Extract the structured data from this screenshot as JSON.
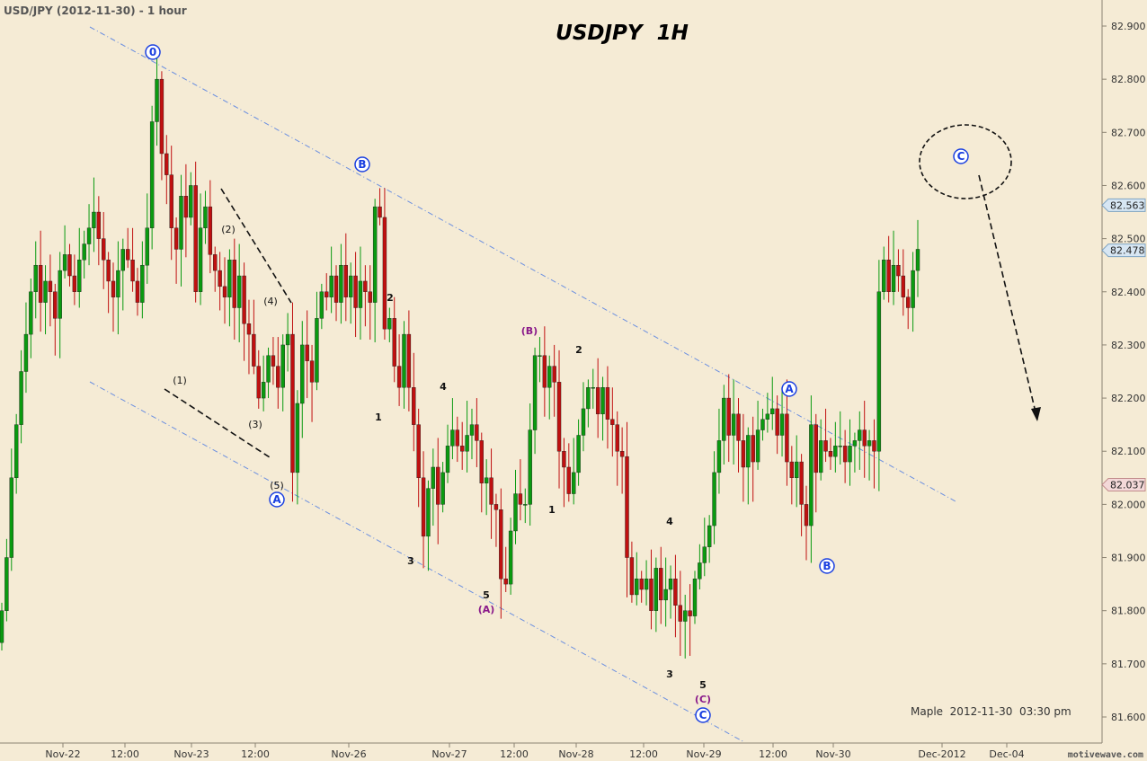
{
  "header": {
    "caption": "USD/JPY (2012-11-30) - 1 hour"
  },
  "footer": {
    "signature": "Maple  2012-11-30  03:30 pm",
    "watermark": "motivewave.com"
  },
  "chart_data": {
    "type": "candlestick",
    "title": "USDJPY  1H",
    "ylim": [
      81.55,
      82.93
    ],
    "y_ticks": [
      "82.900",
      "82.800",
      "82.700",
      "82.600",
      "82.500",
      "82.400",
      "82.300",
      "82.200",
      "82.100",
      "82.000",
      "81.900",
      "81.800",
      "81.700",
      "81.600"
    ],
    "x_ticks": [
      "Nov-22",
      "12:00",
      "Nov-23",
      "12:00",
      "Nov-26",
      "Nov-27",
      "12:00",
      "Nov-28",
      "12:00",
      "Nov-29",
      "12:00",
      "Nov-30",
      "Dec-2012",
      "Dec-04"
    ],
    "price_tags": [
      {
        "label": "82.563",
        "value": 82.563,
        "color": "#d7e6f3",
        "border": "#7ea3c2"
      },
      {
        "label": "82.478",
        "value": 82.478,
        "color": "#d7e6f3",
        "border": "#7ea3c2"
      },
      {
        "label": "82.037",
        "value": 82.037,
        "color": "#f3d8d8",
        "border": "#c28c8c"
      }
    ],
    "colors": {
      "up": "#0a9a10",
      "down": "#c01010",
      "channel": "#6b8fe0",
      "wave_blue": "#1a3fe0",
      "wave_purple": "#8a1a8a",
      "background": "#f5ebd5"
    },
    "candles_close": [
      81.8,
      81.9,
      82.05,
      82.15,
      82.25,
      82.32,
      82.4,
      82.45,
      82.38,
      82.42,
      82.4,
      82.35,
      82.44,
      82.47,
      82.43,
      82.4,
      82.46,
      82.49,
      82.52,
      82.55,
      82.5,
      82.46,
      82.42,
      82.39,
      82.44,
      82.48,
      82.46,
      82.42,
      82.38,
      82.45,
      82.52,
      82.72,
      82.8,
      82.66,
      82.62,
      82.52,
      82.48,
      82.58,
      82.54,
      82.6,
      82.4,
      82.52,
      82.56,
      82.47,
      82.44,
      82.41,
      82.39,
      82.46,
      82.37,
      82.43,
      82.34,
      82.32,
      82.26,
      82.2,
      82.23,
      82.28,
      82.26,
      82.22,
      82.3,
      82.32,
      82.06,
      82.19,
      82.3,
      82.27,
      82.23,
      82.35,
      82.4,
      82.39,
      82.43,
      82.38,
      82.45,
      82.39,
      82.43,
      82.37,
      82.42,
      82.4,
      82.38,
      82.56,
      82.54,
      82.33,
      82.35,
      82.26,
      82.22,
      82.32,
      82.22,
      82.15,
      82.05,
      81.94,
      82.03,
      82.07,
      82.0,
      82.06,
      82.11,
      82.14,
      82.11,
      82.1,
      82.13,
      82.15,
      82.12,
      82.04,
      82.05,
      82.0,
      81.99,
      81.86,
      81.85,
      81.95,
      82.02,
      82.0,
      82.0,
      82.14,
      82.28,
      82.28,
      82.22,
      82.26,
      82.23,
      82.1,
      82.07,
      82.02,
      82.06,
      82.13,
      82.18,
      82.22,
      82.22,
      82.17,
      82.22,
      82.16,
      82.15,
      82.1,
      82.09,
      81.9,
      81.83,
      81.86,
      81.84,
      81.86,
      81.8,
      81.88,
      81.82,
      81.84,
      81.86,
      81.81,
      81.78,
      81.8,
      81.79,
      81.86,
      81.89,
      81.92,
      81.96,
      82.06,
      82.12,
      82.2,
      82.13,
      82.17,
      82.12,
      82.07,
      82.13,
      82.08,
      82.14,
      82.16,
      82.17,
      82.18,
      82.13,
      82.17,
      82.08,
      82.05,
      82.08,
      82.0,
      81.96,
      82.15,
      82.06,
      82.12,
      82.1,
      82.09,
      82.11,
      82.11,
      82.08,
      82.11,
      82.12,
      82.14,
      82.11,
      82.12,
      82.1,
      82.4,
      82.46,
      82.4,
      82.45,
      82.43,
      82.39,
      82.37,
      82.44,
      82.48
    ],
    "channel_upper": [
      {
        "x": 100,
        "y": 30
      },
      {
        "x": 1063,
        "y": 558
      }
    ],
    "channel_lower": [
      {
        "x": 100,
        "y": 425
      },
      {
        "x": 828,
        "y": 826
      }
    ],
    "dashed_lines": [
      {
        "x1": 246,
        "y1": 210,
        "x2": 324,
        "y2": 337
      },
      {
        "x1": 183,
        "y1": 433,
        "x2": 300,
        "y2": 509
      },
      {
        "x1": 1089,
        "y1": 195,
        "x2": 1154,
        "y2": 467
      }
    ],
    "projection_ellipse": {
      "cx": 1074,
      "cy": 180,
      "rx": 51,
      "ry": 41
    },
    "wave_labels": [
      {
        "text": "0",
        "x": 170,
        "y": 58,
        "circle": true,
        "color": "blue"
      },
      {
        "text": "B",
        "x": 403,
        "y": 183,
        "circle": true,
        "color": "blue"
      },
      {
        "text": "A",
        "x": 308,
        "y": 556,
        "circle": true,
        "color": "blue"
      },
      {
        "text": "A",
        "x": 878,
        "y": 433,
        "circle": true,
        "color": "blue"
      },
      {
        "text": "B",
        "x": 920,
        "y": 630,
        "circle": true,
        "color": "blue"
      },
      {
        "text": "C",
        "x": 782,
        "y": 796,
        "circle": true,
        "color": "blue"
      },
      {
        "text": "C",
        "x": 1069,
        "y": 174,
        "circle": true,
        "color": "blue"
      },
      {
        "text": "(1)",
        "x": 200,
        "y": 423,
        "circle": false,
        "color": "black"
      },
      {
        "text": "(2)",
        "x": 254,
        "y": 255,
        "circle": false,
        "color": "black"
      },
      {
        "text": "(3)",
        "x": 284,
        "y": 472,
        "circle": false,
        "color": "black"
      },
      {
        "text": "(4)",
        "x": 301,
        "y": 335,
        "circle": false,
        "color": "black"
      },
      {
        "text": "(5)",
        "x": 308,
        "y": 540,
        "circle": false,
        "color": "black"
      },
      {
        "text": "2",
        "x": 434,
        "y": 331,
        "circle": false,
        "color": "black",
        "bold": true
      },
      {
        "text": "1",
        "x": 421,
        "y": 464,
        "circle": false,
        "color": "black",
        "bold": true
      },
      {
        "text": "3",
        "x": 457,
        "y": 624,
        "circle": false,
        "color": "black",
        "bold": true
      },
      {
        "text": "4",
        "x": 493,
        "y": 430,
        "circle": false,
        "color": "black",
        "bold": true
      },
      {
        "text": "5",
        "x": 541,
        "y": 662,
        "circle": false,
        "color": "black",
        "bold": true
      },
      {
        "text": "(A)",
        "x": 541,
        "y": 678,
        "circle": false,
        "color": "purple",
        "bold": true
      },
      {
        "text": "(B)",
        "x": 589,
        "y": 368,
        "circle": false,
        "color": "purple",
        "bold": true
      },
      {
        "text": "2",
        "x": 644,
        "y": 389,
        "circle": false,
        "color": "black",
        "bold": true
      },
      {
        "text": "1",
        "x": 614,
        "y": 567,
        "circle": false,
        "color": "black",
        "bold": true
      },
      {
        "text": "4",
        "x": 745,
        "y": 580,
        "circle": false,
        "color": "black",
        "bold": true
      },
      {
        "text": "3",
        "x": 745,
        "y": 750,
        "circle": false,
        "color": "black",
        "bold": true
      },
      {
        "text": "5",
        "x": 782,
        "y": 762,
        "circle": false,
        "color": "black",
        "bold": true
      },
      {
        "text": "(C)",
        "x": 782,
        "y": 778,
        "circle": false,
        "color": "purple",
        "bold": true
      }
    ]
  }
}
